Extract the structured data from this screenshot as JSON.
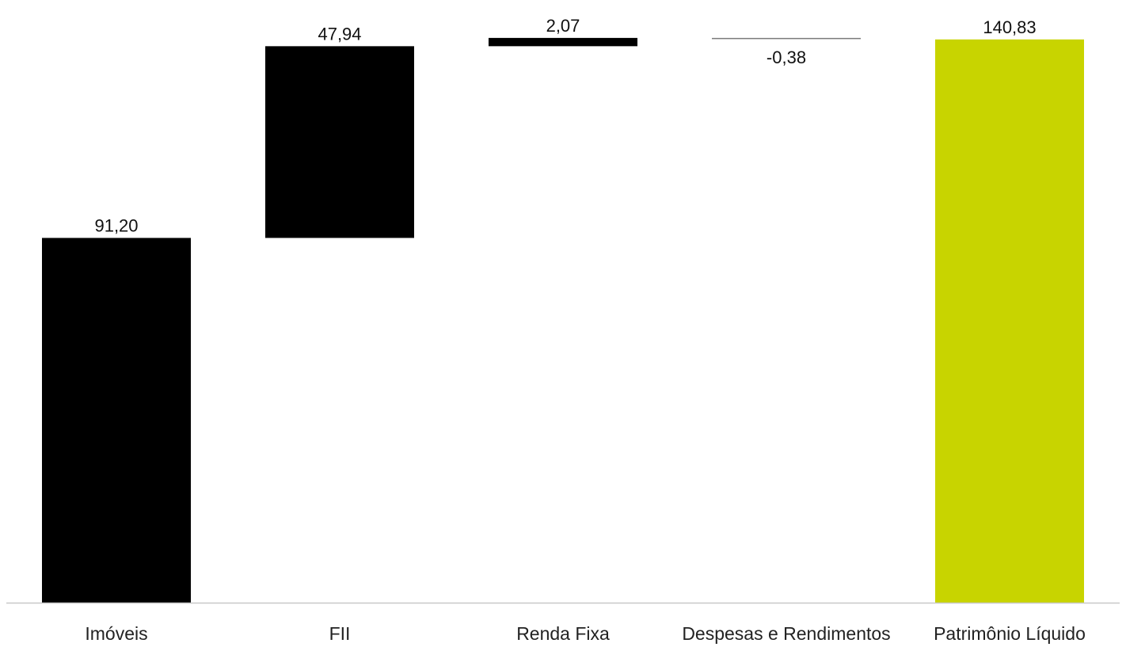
{
  "chart_data": {
    "type": "bar",
    "subtype": "waterfall",
    "categories": [
      "Imóveis",
      "FII",
      "Renda Fixa",
      "Despesas e Rendimentos",
      "Patrimônio Líquido"
    ],
    "values": [
      91.2,
      47.94,
      2.07,
      -0.38,
      140.83
    ],
    "value_labels": [
      "91,20",
      "47,94",
      "2,07",
      "-0,38",
      "140,83"
    ],
    "total_index": 4,
    "title": "",
    "xlabel": "",
    "ylabel": "",
    "ylim": [
      0,
      143
    ],
    "grid": false,
    "legend": "none",
    "colors": {
      "increase": "#000000",
      "decrease": "#000000",
      "total": "#c8d400",
      "axis": "#c8c8c8"
    }
  }
}
